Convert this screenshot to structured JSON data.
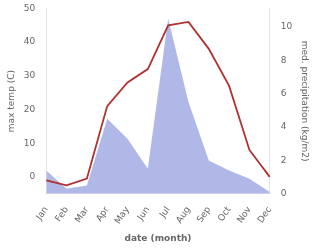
{
  "chart_data": {
    "type": "line",
    "categories": [
      "Jan",
      "Feb",
      "Mar",
      "Apr",
      "May",
      "Jun",
      "Jul",
      "Aug",
      "Sep",
      "Oct",
      "Nov",
      "Dec"
    ],
    "series": [
      {
        "type": "area",
        "color": "#b0b8e8",
        "axis": "y2",
        "values": [
          1.4,
          0.3,
          0.5,
          4.5,
          3.3,
          1.5,
          10.5,
          5.5,
          2.0,
          1.4,
          0.9,
          0.1
        ]
      },
      {
        "type": "line",
        "color": "#b03030",
        "values": [
          -1.0,
          -2.5,
          -0.5,
          21.0,
          28.0,
          32.0,
          45.0,
          46.0,
          38.0,
          27.0,
          8.0,
          0.0
        ]
      }
    ],
    "xlabel": "date (month)",
    "ylabel": "max temp (C)",
    "y2label": "med. precipitation (kg/m2)",
    "ylim": [
      -5,
      50
    ],
    "yticks": [
      0,
      10,
      20,
      30,
      40,
      50
    ],
    "y2lim": [
      0,
      11.11
    ],
    "y2ticks": [
      0,
      2,
      4,
      6,
      8,
      10
    ],
    "grid": false
  }
}
